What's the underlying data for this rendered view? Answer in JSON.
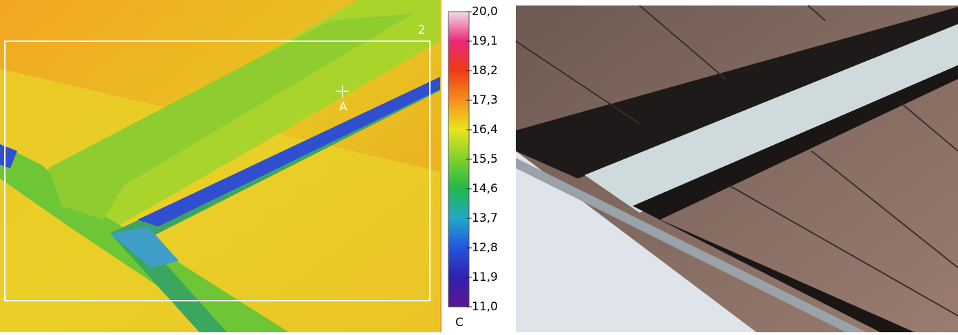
{
  "thermal": {
    "labels": {
      "region": "2",
      "spot": "A"
    }
  },
  "colorbar": {
    "lim": [
      11,
      20
    ],
    "unit": "C",
    "ticks": [
      {
        "value": 20,
        "label": "20,0"
      },
      {
        "value": 19.1,
        "label": "19,1"
      },
      {
        "value": 18.2,
        "label": "18,2"
      },
      {
        "value": 17.3,
        "label": "17,3"
      },
      {
        "value": 16.4,
        "label": "16,4"
      },
      {
        "value": 15.5,
        "label": "15,5"
      },
      {
        "value": 14.6,
        "label": "14,6"
      },
      {
        "value": 13.7,
        "label": "13,7"
      },
      {
        "value": 12.8,
        "label": "12,8"
      },
      {
        "value": 11.9,
        "label": "11,9"
      },
      {
        "value": 11,
        "label": "11,0"
      }
    ]
  }
}
